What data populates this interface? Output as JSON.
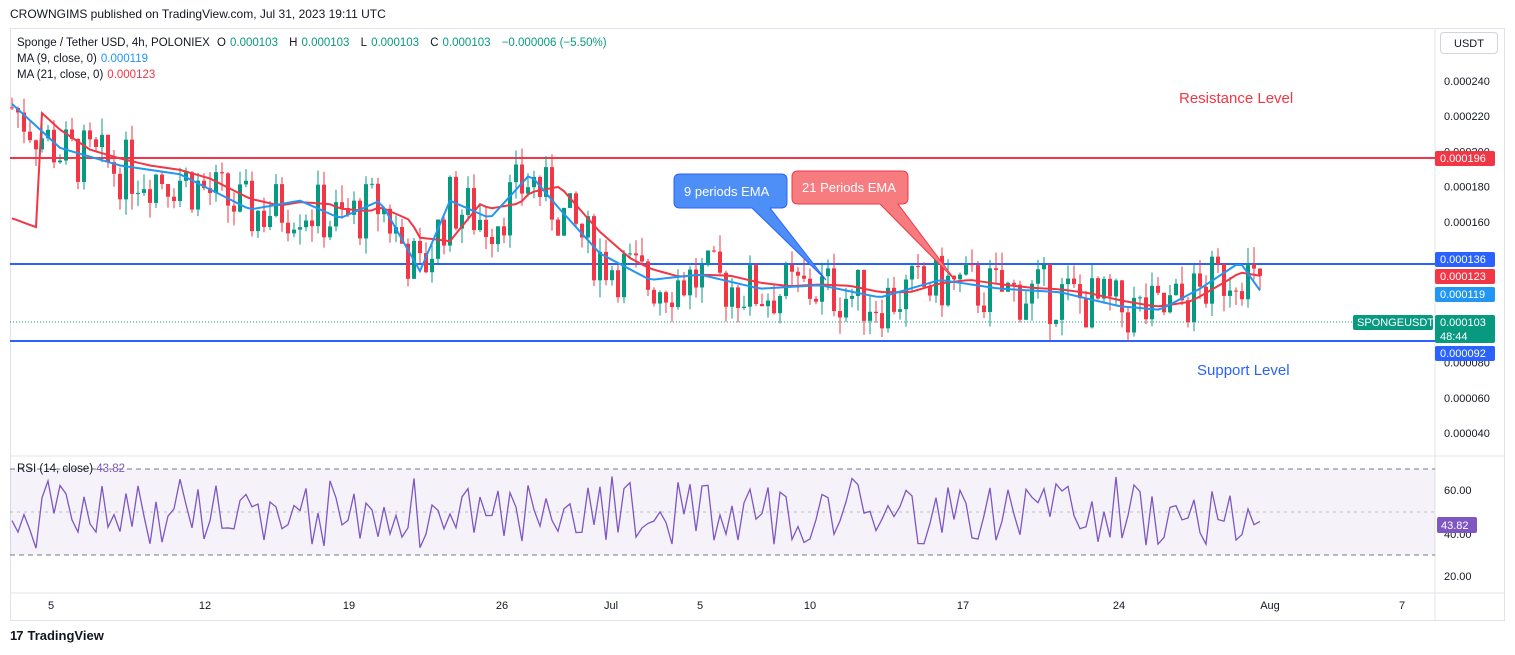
{
  "header": {
    "publisher_line": "CROWNGIMS published on TradingView.com, Jul 31, 2023 19:11 UTC"
  },
  "legend": {
    "symbol": "Sponge / Tether USD, 4h, POLONIEX",
    "o_label": "O",
    "o_value": "0.000103",
    "h_label": "H",
    "h_value": "0.000103",
    "l_label": "L",
    "l_value": "0.000103",
    "c_label": "C",
    "c_value": "0.000103",
    "change": "−0.000006 (−5.50%)",
    "ma9_label": "MA (9, close, 0)",
    "ma9_value": "0.000119",
    "ma21_label": "MA (21, close, 0)",
    "ma21_value": "0.000123"
  },
  "currency_button": "USDT",
  "annotations": {
    "resistance_label": "Resistance Level",
    "support_label": "Support Level",
    "ema9_callout": "9 periods EMA",
    "ema21_callout": "21 Periods EMA"
  },
  "price_tags": {
    "resistance": "0.000196",
    "upper": "0.000136",
    "ma21": "0.000123",
    "ma9": "0.000119",
    "current": "0.000103",
    "countdown": "48:44",
    "support": "0.000092",
    "symbol_tag": "SPONGEUSDT"
  },
  "rsi": {
    "label": "RSI (14, close)",
    "value": "43.82",
    "ticks": [
      "60.00",
      "40.00",
      "20.00"
    ]
  },
  "footer": {
    "brand": "TradingView"
  },
  "colors": {
    "bull": "#089981",
    "bear": "#f23645",
    "ma9": "#2196f3",
    "ma21": "#f23645",
    "level_blue": "#2962ff",
    "rsi": "#7e57c2"
  },
  "chart_data": {
    "type": "candlestick",
    "symbol": "SPONGEUSDT",
    "timeframe": "4h",
    "price_axis_ticks": [
      "0.000240",
      "0.000220",
      "0.000200",
      "0.000180",
      "0.000160",
      "0.000080",
      "0.000060",
      "0.000040"
    ],
    "time_axis_ticks": [
      "5",
      "12",
      "19",
      "26",
      "Jul",
      "5",
      "10",
      "17",
      "24",
      "Aug",
      "7"
    ],
    "horizontal_levels": {
      "resistance": 0.000196,
      "upper": 0.000136,
      "support": 9.2e-05
    },
    "last": {
      "open": 0.000103,
      "high": 0.000103,
      "low": 0.000103,
      "close": 0.000103
    },
    "ma9_last": 0.000119,
    "ma21_last": 0.000123,
    "rsi_last": 43.82,
    "rsi_bands": [
      70,
      30
    ]
  }
}
